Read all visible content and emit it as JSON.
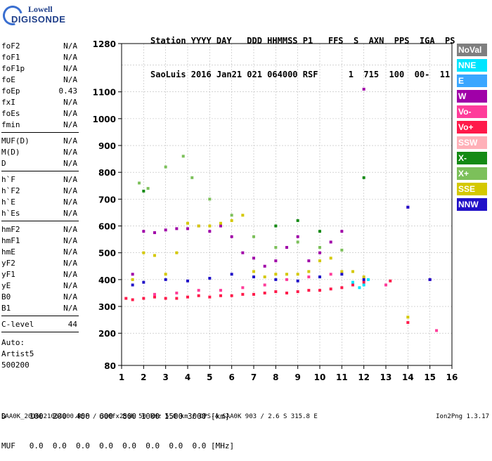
{
  "logo": {
    "line1": "Lowell",
    "line2": "DIGISONDE"
  },
  "header": {
    "row1": "Station YYYY DAY   DDD HHMMSS P1   FFS  S  AXN  PPS  IGA  PS",
    "row2": "SaoLuis 2016 Jan21 021 064000 RSF      1  715  100  00-  11"
  },
  "params": {
    "group1": [
      {
        "name": "foF2",
        "value": "N/A"
      },
      {
        "name": "foF1",
        "value": "N/A"
      },
      {
        "name": "foF1p",
        "value": "N/A"
      },
      {
        "name": "foE",
        "value": "N/A"
      },
      {
        "name": "foEp",
        "value": "0.43"
      },
      {
        "name": "fxI",
        "value": "N/A"
      },
      {
        "name": "foEs",
        "value": "N/A"
      },
      {
        "name": "fmin",
        "value": "N/A"
      }
    ],
    "group2": [
      {
        "name": "MUF(D)",
        "value": "N/A"
      },
      {
        "name": "M(D)",
        "value": "N/A"
      },
      {
        "name": "D",
        "value": "N/A"
      }
    ],
    "group3": [
      {
        "name": "h`F",
        "value": "N/A"
      },
      {
        "name": "h`F2",
        "value": "N/A"
      },
      {
        "name": "h`E",
        "value": "N/A"
      },
      {
        "name": "h`Es",
        "value": "N/A"
      }
    ],
    "group4": [
      {
        "name": "hmF2",
        "value": "N/A"
      },
      {
        "name": "hmF1",
        "value": "N/A"
      },
      {
        "name": "hmE",
        "value": "N/A"
      },
      {
        "name": "yF2",
        "value": "N/A"
      },
      {
        "name": "yF1",
        "value": "N/A"
      },
      {
        "name": "yE",
        "value": "N/A"
      },
      {
        "name": "B0",
        "value": "N/A"
      },
      {
        "name": "B1",
        "value": "N/A"
      }
    ],
    "clevel": {
      "name": "C-level",
      "value": "44"
    }
  },
  "auto": {
    "line1": "Auto:",
    "line2": "Artist5",
    "line3": "500200"
  },
  "legend": [
    {
      "label": "NoVal",
      "color": "#7f7f7f"
    },
    {
      "label": "NNE",
      "color": "#00e5ff"
    },
    {
      "label": "E",
      "color": "#3aa6ff"
    },
    {
      "label": "W",
      "color": "#a000a8"
    },
    {
      "label": "Vo-",
      "color": "#ff3c9a"
    },
    {
      "label": "Vo+",
      "color": "#ff1a4a"
    },
    {
      "label": "SSW",
      "color": "#ffb0b8"
    },
    {
      "label": "X-",
      "color": "#148a14"
    },
    {
      "label": "X+",
      "color": "#7cc05a"
    },
    {
      "label": "SSE",
      "color": "#d4c800"
    },
    {
      "label": "NNW",
      "color": "#2010c8"
    }
  ],
  "bottom": {
    "d_row": "D     100  200  400  600  800 1000 1500 3000 [km]",
    "muf_row": "MUF   0.0  0.0  0.0  0.0  0.0  0.0  0.0  0.0 [MHz]"
  },
  "footer": "SAA0K_2016021064000.RSF / 300fx256h 50 kHz 5.0 km / DPS-4 SAA0K 903 / 2.6 S 315.8 E",
  "version": "Ion2Png 1.3.17",
  "chart_data": {
    "type": "scatter",
    "xlabel": "",
    "ylabel": "",
    "xlim": [
      1,
      16
    ],
    "ylim": [
      80,
      1280
    ],
    "xticks": [
      1,
      2,
      3,
      4,
      5,
      6,
      7,
      8,
      9,
      10,
      11,
      12,
      13,
      14,
      15,
      16
    ],
    "yticks": [
      80,
      200,
      300,
      400,
      500,
      600,
      700,
      800,
      900,
      1000,
      1100,
      1280
    ],
    "ygrid": [
      1200
    ],
    "grid": true,
    "series": [
      {
        "name": "Vo+",
        "color": "#ff1a4a",
        "x": [
          1.2,
          1.5,
          2.0,
          2.5,
          3.0,
          3.5,
          4.0,
          4.5,
          5.0,
          5.5,
          6.0,
          6.5,
          7.0,
          7.5,
          8.0,
          8.5,
          9.0,
          9.5,
          10.0,
          10.5,
          11.0,
          11.5,
          12.0,
          13.2,
          14.0
        ],
        "y": [
          330,
          325,
          330,
          335,
          330,
          330,
          335,
          340,
          335,
          340,
          340,
          345,
          345,
          350,
          355,
          350,
          355,
          360,
          360,
          365,
          370,
          380,
          390,
          395,
          240
        ]
      },
      {
        "name": "W",
        "color": "#a000a8",
        "x": [
          1.5,
          2.0,
          2.5,
          3.0,
          3.5,
          4.0,
          4.5,
          5.0,
          5.5,
          6.0,
          6.5,
          7.0,
          7.5,
          8.0,
          8.5,
          9.0,
          9.5,
          10.0,
          10.5,
          11.0,
          12.0,
          14.0,
          15.0
        ],
        "y": [
          420,
          580,
          575,
          585,
          590,
          590,
          600,
          580,
          600,
          560,
          500,
          480,
          450,
          470,
          520,
          560,
          470,
          500,
          540,
          580,
          1110,
          670,
          400
        ]
      },
      {
        "name": "SSE",
        "color": "#d4c800",
        "x": [
          1.5,
          2.0,
          2.5,
          3.0,
          3.5,
          4.0,
          4.5,
          5.0,
          5.5,
          6.0,
          6.5,
          7.0,
          7.5,
          8.0,
          8.5,
          9.0,
          9.5,
          10.0,
          10.5,
          11.0,
          11.5,
          12.0,
          14.0
        ],
        "y": [
          400,
          500,
          490,
          420,
          500,
          610,
          600,
          600,
          610,
          620,
          640,
          430,
          410,
          420,
          420,
          420,
          430,
          470,
          480,
          430,
          430,
          410,
          260
        ]
      },
      {
        "name": "NNW",
        "color": "#2010c8",
        "x": [
          1.5,
          2.0,
          3.0,
          4.0,
          5.0,
          6.0,
          7.0,
          8.0,
          9.0,
          10.0,
          11.0,
          12.0,
          14.0,
          15.0
        ],
        "y": [
          380,
          390,
          400,
          395,
          405,
          420,
          410,
          400,
          395,
          410,
          420,
          400,
          670,
          400
        ]
      },
      {
        "name": "X+",
        "color": "#7cc05a",
        "x": [
          1.8,
          2.2,
          3.0,
          3.8,
          4.2,
          5.0,
          6.0,
          7.0,
          8.0,
          9.0,
          10.0,
          11.0
        ],
        "y": [
          760,
          740,
          820,
          860,
          780,
          700,
          640,
          560,
          520,
          540,
          520,
          510
        ]
      },
      {
        "name": "NNE",
        "color": "#00e5ff",
        "x": [
          11.5,
          11.8,
          12.0,
          12.2
        ],
        "y": [
          390,
          370,
          380,
          400
        ]
      },
      {
        "name": "Vo-",
        "color": "#ff3c9a",
        "x": [
          2.5,
          3.5,
          4.5,
          5.5,
          6.5,
          7.5,
          8.5,
          9.5,
          10.5,
          13.0,
          15.3
        ],
        "y": [
          345,
          350,
          360,
          360,
          370,
          380,
          400,
          410,
          420,
          380,
          210
        ]
      },
      {
        "name": "X-",
        "color": "#148a14",
        "x": [
          2.0,
          8.0,
          9.0,
          10.0,
          12.0
        ],
        "y": [
          730,
          600,
          620,
          580,
          780
        ]
      }
    ]
  }
}
